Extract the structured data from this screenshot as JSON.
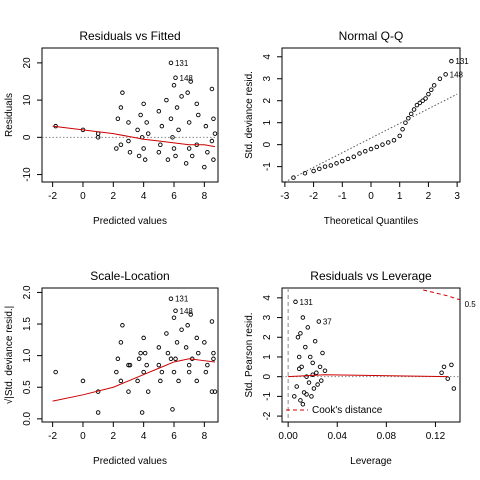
{
  "chart_data": [
    {
      "type": "scatter",
      "title": "Residuals vs Fitted",
      "x_label": "Predicted values",
      "y_label": "Residuals",
      "xlim": [
        -2.7,
        8.9
      ],
      "ylim": [
        -12,
        24
      ],
      "xticks": [
        -2,
        0,
        2,
        4,
        6,
        8
      ],
      "yticks": [
        -10,
        0,
        10,
        20
      ],
      "hlines": [
        0
      ],
      "series": [
        {
          "mode": "markers",
          "color": "#000000",
          "x": [
            -1.8,
            0,
            1,
            1,
            2.2,
            2.3,
            2.5,
            2.5,
            2.6,
            3,
            3,
            3.1,
            3.6,
            3.7,
            3.8,
            3.9,
            4,
            4,
            4.1,
            4.2,
            4.3,
            5,
            5,
            5.1,
            5.2,
            5.5,
            5.6,
            5.8,
            5.9,
            6,
            6,
            6.1,
            6.2,
            6.3,
            6.5,
            6.8,
            6.9,
            7,
            7,
            7.1,
            7.2,
            7.5,
            7.5,
            7.6,
            8,
            8.1,
            8.2,
            8.5,
            8.5,
            8.6,
            8.6,
            8.7,
            5.8,
            6.1
          ],
          "values": [
            3,
            2,
            1,
            0,
            -3,
            5,
            -2,
            8,
            12,
            -1,
            4,
            -4,
            2,
            -5,
            6,
            0,
            -3,
            9,
            -6,
            4,
            1,
            -4,
            7,
            -2,
            3,
            10,
            -6,
            5,
            0,
            -3,
            14,
            -5,
            8,
            2,
            11,
            -7,
            12,
            4,
            -3,
            15,
            -5,
            9,
            -2,
            6,
            -8,
            3,
            -4,
            13,
            -1,
            5,
            -6,
            1,
            20,
            16
          ]
        },
        {
          "mode": "lines",
          "dash": "solid",
          "color": "#cc0000",
          "x": [
            -2,
            0,
            2,
            4,
            5,
            6,
            7,
            8,
            8.7
          ],
          "values": [
            3,
            2,
            1,
            -0.5,
            -1,
            -1.5,
            -2,
            -2,
            -2.5
          ]
        }
      ],
      "annotations": [
        {
          "text": "131",
          "x": 5.8,
          "y": 20
        },
        {
          "text": "148",
          "x": 6.1,
          "y": 16
        }
      ]
    },
    {
      "type": "scatter",
      "title": "Normal Q-Q",
      "x_label": "Theoretical Quantiles",
      "y_label": "Std. deviance resid.",
      "xlim": [
        -3.1,
        3.1
      ],
      "ylim": [
        -1.7,
        4.4
      ],
      "xticks": [
        -3,
        -2,
        -1,
        0,
        1,
        2,
        3
      ],
      "yticks": [
        -1,
        0,
        1,
        2,
        3,
        4
      ],
      "hlines": [],
      "series": [
        {
          "mode": "markers",
          "color": "#000000",
          "x": [
            -2.7,
            -2.3,
            -2,
            -1.8,
            -1.6,
            -1.4,
            -1.2,
            -1,
            -0.8,
            -0.6,
            -0.4,
            -0.2,
            0,
            0.2,
            0.4,
            0.6,
            0.8,
            1,
            1.1,
            1.2,
            1.3,
            1.4,
            1.5,
            1.6,
            1.7,
            1.8,
            1.9,
            2,
            2.1,
            2.2,
            2.4,
            2.6,
            2.8
          ],
          "values": [
            -1.5,
            -1.3,
            -1.2,
            -1.1,
            -1,
            -0.95,
            -0.85,
            -0.75,
            -0.65,
            -0.55,
            -0.4,
            -0.3,
            -0.2,
            -0.1,
            0,
            0.1,
            0.2,
            0.4,
            0.7,
            1,
            1.2,
            1.4,
            1.6,
            1.8,
            1.9,
            2,
            2.1,
            2.3,
            2.5,
            2.7,
            3,
            3.2,
            3.8
          ]
        },
        {
          "mode": "lines",
          "dash": "dotted",
          "color": "#555555",
          "x": [
            -3,
            3
          ],
          "values": [
            -1.7,
            2.3
          ]
        }
      ],
      "annotations": [
        {
          "text": "131",
          "x": 2.8,
          "y": 3.8
        },
        {
          "text": "148",
          "x": 2.6,
          "y": 3.2
        }
      ]
    },
    {
      "type": "scatter",
      "title": "Scale-Location",
      "x_label": "Predicted values",
      "y_label": "√|Std. deviance resid.|",
      "xlim": [
        -2.7,
        8.9
      ],
      "ylim": [
        -0.05,
        2.07
      ],
      "xticks": [
        -2,
        0,
        2,
        4,
        6,
        8
      ],
      "yticks": [
        {
          "value": 0,
          "label": "0.0"
        },
        {
          "value": 0.5,
          "label": "0.5"
        },
        {
          "value": 1,
          "label": "1.0"
        },
        {
          "value": 1.5,
          "label": "1.5"
        },
        {
          "value": 2,
          "label": "2.0"
        }
      ],
      "hlines": [],
      "series": [
        {
          "mode": "markers",
          "color": "#000000",
          "x": [
            -1.8,
            0,
            1,
            1,
            2.2,
            2.3,
            2.5,
            2.5,
            2.6,
            3,
            3,
            3.1,
            3.6,
            3.7,
            3.8,
            3.9,
            4,
            4,
            4.1,
            4.2,
            4.3,
            5,
            5,
            5.1,
            5.2,
            5.5,
            5.6,
            5.8,
            5.9,
            6,
            6,
            6.1,
            6.2,
            6.3,
            6.5,
            6.8,
            6.9,
            7,
            7,
            7.1,
            7.2,
            7.5,
            7.5,
            7.6,
            8,
            8.1,
            8.2,
            8.5,
            8.5,
            8.6,
            8.6,
            8.7,
            5.8,
            6.1
          ],
          "values": [
            0.74,
            0.6,
            0.43,
            0.1,
            0.74,
            0.95,
            0.6,
            1.21,
            1.48,
            0.43,
            0.85,
            0.85,
            0.6,
            0.95,
            1.04,
            0.1,
            0.74,
            1.28,
            1.04,
            0.85,
            0.43,
            0.85,
            1.13,
            0.6,
            0.74,
            1.35,
            1.04,
            0.95,
            0.15,
            0.74,
            1.6,
            0.95,
            1.21,
            0.6,
            1.41,
            1.13,
            1.48,
            0.85,
            0.74,
            1.65,
            0.95,
            1.28,
            0.6,
            1.04,
            1.21,
            0.74,
            0.85,
            1.54,
            0.43,
            0.95,
            1.04,
            0.43,
            1.9,
            1.71
          ]
        },
        {
          "mode": "lines",
          "dash": "solid",
          "color": "#cc0000",
          "x": [
            -2,
            0,
            2,
            4,
            5,
            6,
            7,
            8,
            8.7
          ],
          "values": [
            0.28,
            0.38,
            0.5,
            0.7,
            0.8,
            0.9,
            0.95,
            0.92,
            0.9
          ]
        }
      ],
      "annotations": [
        {
          "text": "131",
          "x": 5.8,
          "y": 1.9
        },
        {
          "text": "148",
          "x": 6.1,
          "y": 1.71
        }
      ]
    },
    {
      "type": "scatter",
      "title": "Residuals vs Leverage",
      "x_label": "Leverage",
      "y_label": "Std. Pearson resid.",
      "xlim": [
        -0.005,
        0.14
      ],
      "ylim": [
        -2.3,
        4.5
      ],
      "xticks": [
        {
          "value": 0,
          "label": "0.00"
        },
        {
          "value": 0.04,
          "label": "0.04"
        },
        {
          "value": 0.08,
          "label": "0.08"
        },
        {
          "value": 0.12,
          "label": "0.12"
        }
      ],
      "yticks": [
        -2,
        -1,
        0,
        1,
        2,
        3,
        4
      ],
      "hlines": [
        0
      ],
      "vlines": [
        0
      ],
      "legend": "bottomleft",
      "series": [
        {
          "mode": "markers",
          "color": "#000000",
          "x": [
            0.005,
            0.006,
            0.007,
            0.008,
            0.009,
            0.01,
            0.011,
            0.012,
            0.013,
            0.014,
            0.015,
            0.016,
            0.017,
            0.018,
            0.019,
            0.02,
            0.021,
            0.022,
            0.023,
            0.024,
            0.025,
            0.026,
            0.027,
            0.028,
            0.03,
            0.012,
            0.009,
            0.015,
            0.02,
            0.01,
            0.125,
            0.127,
            0.13,
            0.133,
            0.135
          ],
          "values": [
            -1,
            3.8,
            -0.5,
            2,
            1,
            -1.2,
            0.5,
            3,
            -0.8,
            1.5,
            0,
            2.5,
            -0.3,
            1,
            -1,
            0.7,
            -0.6,
            1.8,
            0.2,
            -0.4,
            2.8,
            0.5,
            -0.2,
            1.2,
            0.3,
            -1.4,
            0.4,
            -0.9,
            0.1,
            2.2,
            0.2,
            0.5,
            -0.1,
            0.6,
            -0.6
          ]
        },
        {
          "mode": "lines",
          "dash": "solid",
          "color": "#cc0000",
          "x": [
            0,
            0.03,
            0.13
          ],
          "values": [
            0,
            0.1,
            0
          ]
        },
        {
          "mode": "lines",
          "dash": "dashed",
          "color": "#cc0000",
          "name": "Cook's distance",
          "x": [
            0.11,
            0.13,
            0.14
          ],
          "values": [
            4.4,
            4.1,
            3.9
          ]
        }
      ],
      "annotations": [
        {
          "text": "131",
          "x": 0.006,
          "y": 3.8
        },
        {
          "text": "37",
          "x": 0.025,
          "y": 2.8
        },
        {
          "text": "0.5",
          "x": 0.1405,
          "y": 3.7
        }
      ]
    }
  ]
}
